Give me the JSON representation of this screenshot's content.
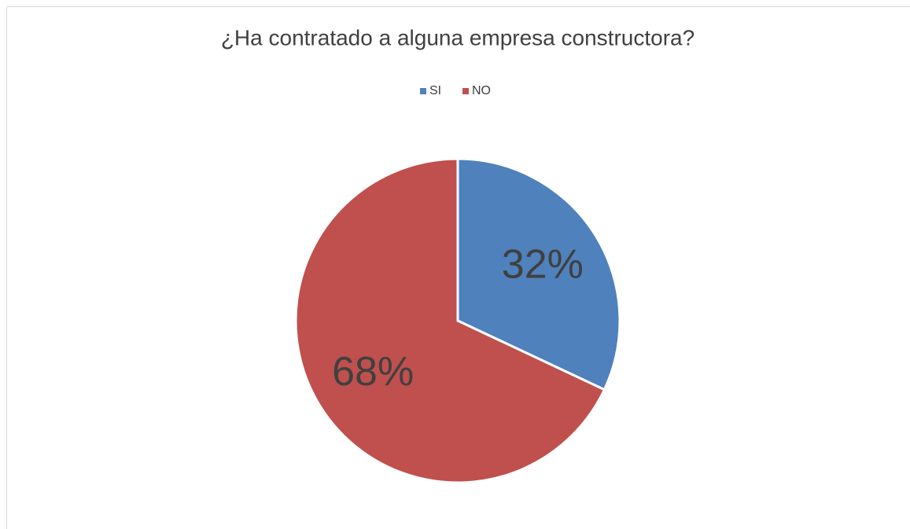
{
  "chart_data": {
    "type": "pie",
    "title": "¿Ha contratado a alguna empresa constructora?",
    "categories": [
      "SI",
      "NO"
    ],
    "values": [
      32,
      68
    ],
    "value_labels": [
      "32%",
      "68%"
    ],
    "colors": [
      "#4f81bd",
      "#c0504d"
    ],
    "legend": "top"
  }
}
